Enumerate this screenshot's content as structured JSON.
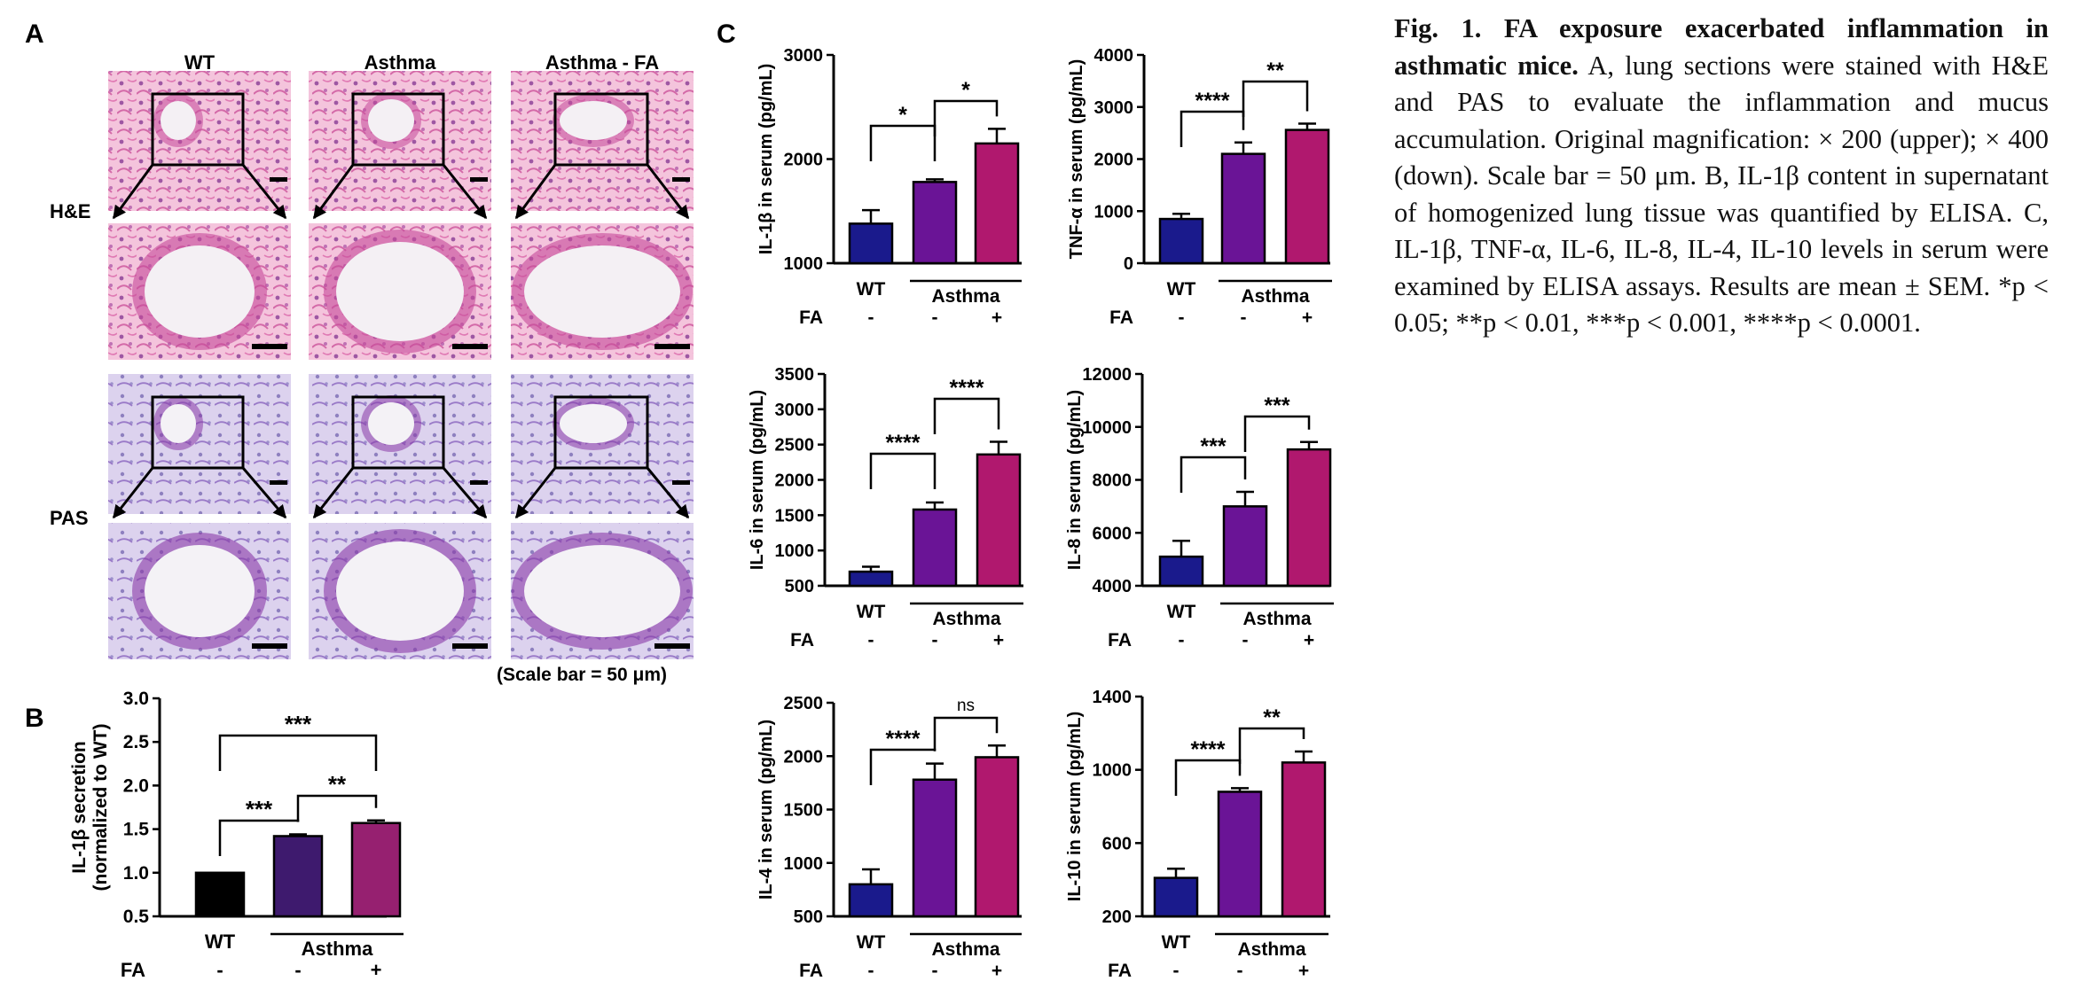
{
  "panel_letters": {
    "a": "A",
    "b": "B",
    "c": "C"
  },
  "panel_a": {
    "columns": [
      "WT",
      "Asthma",
      "Asthma - FA"
    ],
    "rows": [
      "H&E",
      "PAS"
    ],
    "scale_note": "(Scale bar = 50 μm)"
  },
  "colors": {
    "wt": "#1a1a8c",
    "asthma": "#6a1496",
    "asthma_fa": "#b0186e",
    "b_wt": "#000000",
    "b_asthma": "#3e1a6e",
    "b_asthma_fa": "#962070",
    "he_bg": "#f2bcd8",
    "pas_bg": "#d8ccec"
  },
  "caption": {
    "title": "Fig. 1. FA exposure exacerbated inflammation in asthmatic mice.",
    "body": "A, lung sections were stained with H&E and PAS to evaluate the inflammation and mucus accumulation. Original magnification: × 200 (upper); × 400 (down). Scale bar = 50 μm. B, IL-1β content in supernatant of homogenized lung tissue was quantified by ELISA. C, IL-1β, TNF-α, IL-6, IL-8, IL-4, IL-10 levels in serum were examined by ELISA assays. Results are mean ± SEM. *p < 0.05; **p < 0.01, ***p < 0.001, ****p < 0.0001."
  },
  "chart_data": [
    {
      "id": "B",
      "type": "bar",
      "ylabel": "IL-1β secretion\n(normalized to WT)",
      "ylim": [
        0.5,
        3.0
      ],
      "yticks": [
        0.5,
        1.0,
        1.5,
        2.0,
        2.5,
        3.0
      ],
      "categories": [
        "WT",
        "Asthma",
        "Asthma"
      ],
      "fa": [
        "-",
        "-",
        "+"
      ],
      "group_label": "Asthma",
      "values": [
        1.0,
        1.42,
        1.57
      ],
      "errors": [
        0.0,
        0.02,
        0.03
      ],
      "comparisons": [
        {
          "from": 0,
          "to": 1,
          "label": "***"
        },
        {
          "from": 1,
          "to": 2,
          "label": "**"
        },
        {
          "from": 0,
          "to": 2,
          "label": "***"
        }
      ]
    },
    {
      "id": "IL1b",
      "type": "bar",
      "ylabel": "IL-1β in serum (pg/mL)",
      "ylim": [
        1000,
        3000
      ],
      "yticks": [
        1000,
        2000,
        3000
      ],
      "categories": [
        "WT",
        "Asthma",
        "Asthma"
      ],
      "fa": [
        "-",
        "-",
        "+"
      ],
      "group_label": "Asthma",
      "values": [
        1380,
        1780,
        2150
      ],
      "errors": [
        130,
        25,
        140
      ],
      "comparisons": [
        {
          "from": 0,
          "to": 1,
          "label": "*"
        },
        {
          "from": 1,
          "to": 2,
          "label": "*"
        }
      ]
    },
    {
      "id": "TNFa",
      "type": "bar",
      "ylabel": "TNF-α in serum (pg/mL)",
      "ylim": [
        0,
        4000
      ],
      "yticks": [
        0,
        1000,
        2000,
        3000,
        4000
      ],
      "categories": [
        "WT",
        "Asthma",
        "Asthma"
      ],
      "fa": [
        "-",
        "-",
        "+"
      ],
      "group_label": "Asthma",
      "values": [
        850,
        2100,
        2560
      ],
      "errors": [
        100,
        220,
        120
      ],
      "comparisons": [
        {
          "from": 0,
          "to": 1,
          "label": "****"
        },
        {
          "from": 1,
          "to": 2,
          "label": "**"
        }
      ]
    },
    {
      "id": "IL6",
      "type": "bar",
      "ylabel": "IL-6 in serum (pg/mL)",
      "ylim": [
        500,
        3500
      ],
      "yticks": [
        500,
        1000,
        1500,
        2000,
        2500,
        3000,
        3500
      ],
      "categories": [
        "WT",
        "Asthma",
        "Asthma"
      ],
      "fa": [
        "-",
        "-",
        "+"
      ],
      "group_label": "Asthma",
      "values": [
        700,
        1580,
        2360
      ],
      "errors": [
        70,
        100,
        180
      ],
      "comparisons": [
        {
          "from": 0,
          "to": 1,
          "label": "****"
        },
        {
          "from": 1,
          "to": 2,
          "label": "****"
        }
      ]
    },
    {
      "id": "IL8",
      "type": "bar",
      "ylabel": "IL-8 in serum (pg/mL)",
      "ylim": [
        4000,
        12000
      ],
      "yticks": [
        4000,
        6000,
        8000,
        10000,
        12000
      ],
      "categories": [
        "WT",
        "Asthma",
        "Asthma"
      ],
      "fa": [
        "-",
        "-",
        "+"
      ],
      "group_label": "Asthma",
      "values": [
        5100,
        7000,
        9150
      ],
      "errors": [
        600,
        550,
        280
      ],
      "comparisons": [
        {
          "from": 0,
          "to": 1,
          "label": "***"
        },
        {
          "from": 1,
          "to": 2,
          "label": "***"
        }
      ]
    },
    {
      "id": "IL4",
      "type": "bar",
      "ylabel": "IL-4 in serum (pg/mL)",
      "ylim": [
        500,
        2500
      ],
      "yticks": [
        500,
        1000,
        1500,
        2000,
        2500
      ],
      "categories": [
        "WT",
        "Asthma",
        "Asthma"
      ],
      "fa": [
        "-",
        "-",
        "+"
      ],
      "group_label": "Asthma",
      "values": [
        800,
        1780,
        1990
      ],
      "errors": [
        140,
        150,
        110
      ],
      "comparisons": [
        {
          "from": 0,
          "to": 1,
          "label": "****"
        },
        {
          "from": 1,
          "to": 2,
          "label": "ns"
        }
      ]
    },
    {
      "id": "IL10",
      "type": "bar",
      "ylabel": "IL-10 in serum (pg/mL)",
      "ylim": [
        200,
        1400
      ],
      "yticks": [
        200,
        600,
        1000,
        1400
      ],
      "categories": [
        "WT",
        "Asthma",
        "Asthma"
      ],
      "fa": [
        "-",
        "-",
        "+"
      ],
      "group_label": "Asthma",
      "values": [
        410,
        880,
        1040
      ],
      "errors": [
        50,
        20,
        60
      ],
      "comparisons": [
        {
          "from": 0,
          "to": 1,
          "label": "****"
        },
        {
          "from": 1,
          "to": 2,
          "label": "**"
        }
      ]
    }
  ]
}
